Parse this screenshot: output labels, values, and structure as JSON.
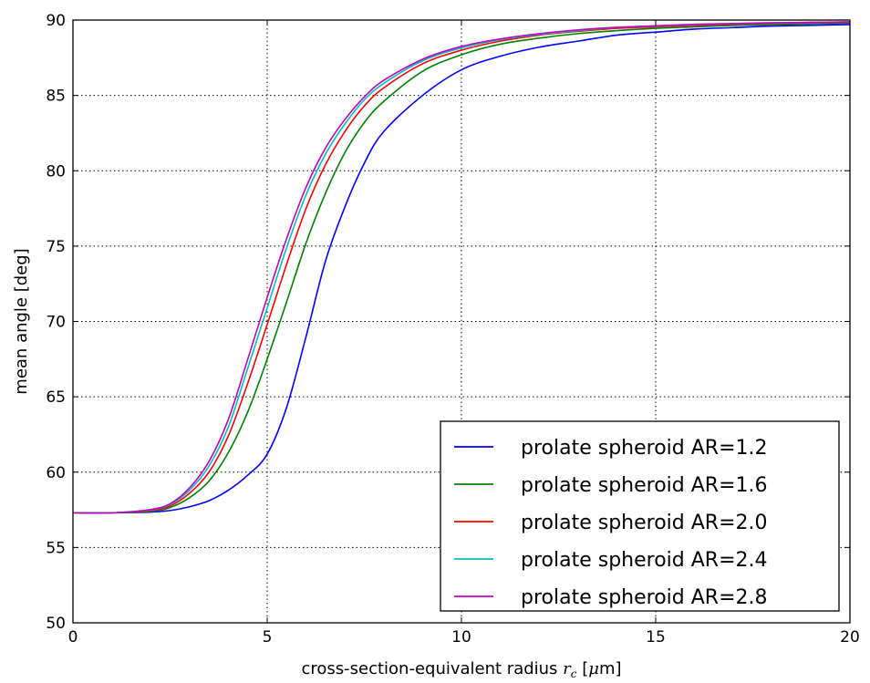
{
  "chart_data": {
    "type": "line",
    "xlabel_prefix": "cross-section-equivalent radius ",
    "xlabel_symbol": "r",
    "xlabel_subscript": "c",
    "xlabel_unit_open": " [",
    "xlabel_unit_mu": "μ",
    "xlabel_unit_rest": "m]",
    "ylabel": "mean angle [deg]",
    "xlim": [
      0,
      20
    ],
    "ylim": [
      50,
      90
    ],
    "xticks": [
      "0",
      "5",
      "10",
      "15",
      "20"
    ],
    "yticks": [
      "50",
      "55",
      "60",
      "65",
      "70",
      "75",
      "80",
      "85",
      "90"
    ],
    "grid": true,
    "legend_position": "bottom-right",
    "x": [
      0,
      1,
      2,
      2.5,
      3,
      3.5,
      4,
      4.5,
      5,
      5.5,
      6,
      6.5,
      7,
      7.5,
      8,
      9,
      10,
      11,
      12,
      13,
      14,
      15,
      16,
      17,
      18,
      19,
      20
    ],
    "series": [
      {
        "name": "prolate spheroid AR=1.2",
        "color": "#0000ff",
        "values": [
          57.3,
          57.3,
          57.35,
          57.45,
          57.7,
          58.1,
          58.8,
          59.8,
          61.2,
          64.3,
          69.0,
          74.0,
          77.6,
          80.5,
          82.6,
          85.0,
          86.7,
          87.6,
          88.2,
          88.6,
          89.0,
          89.2,
          89.4,
          89.5,
          89.6,
          89.65,
          89.7
        ]
      },
      {
        "name": "prolate spheroid AR=1.6",
        "color": "#008000",
        "values": [
          57.3,
          57.3,
          57.4,
          57.65,
          58.3,
          59.4,
          61.3,
          64.0,
          67.5,
          71.3,
          75.2,
          78.5,
          81.2,
          83.2,
          84.6,
          86.6,
          87.7,
          88.4,
          88.8,
          89.1,
          89.3,
          89.45,
          89.55,
          89.65,
          89.7,
          89.75,
          89.8
        ]
      },
      {
        "name": "prolate spheroid AR=2.0",
        "color": "#ff0000",
        "values": [
          57.3,
          57.3,
          57.45,
          57.75,
          58.6,
          60.0,
          62.4,
          65.9,
          69.8,
          73.8,
          77.5,
          80.4,
          82.6,
          84.3,
          85.5,
          87.1,
          88.0,
          88.6,
          89.0,
          89.25,
          89.45,
          89.55,
          89.65,
          89.72,
          89.78,
          89.82,
          89.85
        ]
      },
      {
        "name": "prolate spheroid AR=2.4",
        "color": "#00bfbf",
        "values": [
          57.3,
          57.3,
          57.5,
          57.85,
          58.8,
          60.4,
          63.0,
          66.9,
          70.9,
          74.9,
          78.4,
          81.1,
          83.1,
          84.7,
          85.8,
          87.3,
          88.15,
          88.7,
          89.05,
          89.3,
          89.5,
          89.6,
          89.7,
          89.75,
          89.8,
          89.84,
          89.87
        ]
      },
      {
        "name": "prolate spheroid AR=2.8",
        "color": "#bf00bf",
        "values": [
          57.3,
          57.3,
          57.52,
          57.9,
          58.95,
          60.7,
          63.5,
          67.5,
          71.6,
          75.5,
          78.9,
          81.5,
          83.4,
          84.9,
          86.0,
          87.4,
          88.25,
          88.75,
          89.1,
          89.35,
          89.52,
          89.62,
          89.72,
          89.77,
          89.82,
          89.85,
          89.88
        ]
      }
    ]
  }
}
